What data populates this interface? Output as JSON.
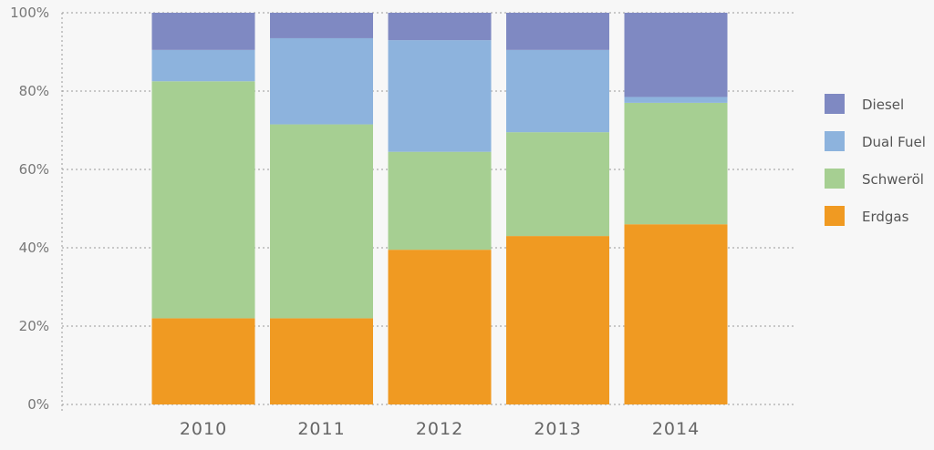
{
  "chart_data": {
    "type": "bar",
    "stacked": true,
    "categories": [
      "2010",
      "2011",
      "2012",
      "2013",
      "2014"
    ],
    "series": [
      {
        "name": "Erdgas",
        "color": "#f09a22",
        "values": [
          22,
          22,
          39.5,
          43,
          46
        ]
      },
      {
        "name": "Schweröl",
        "color": "#a6cf92",
        "values": [
          60.5,
          49.5,
          25,
          26.5,
          31
        ]
      },
      {
        "name": "Dual Fuel",
        "color": "#8db3dd",
        "values": [
          8,
          22,
          28.5,
          21,
          1.5
        ]
      },
      {
        "name": "Diesel",
        "color": "#7f89c2",
        "values": [
          9.5,
          6.5,
          7,
          9.5,
          21.5
        ]
      }
    ],
    "yticks": [
      "0%",
      "20%",
      "40%",
      "60%",
      "80%",
      "100%"
    ],
    "ylim": [
      0,
      100
    ],
    "legend": {
      "position": "right",
      "order": [
        "Diesel",
        "Dual Fuel",
        "Schweröl",
        "Erdgas"
      ]
    },
    "grid": true
  }
}
